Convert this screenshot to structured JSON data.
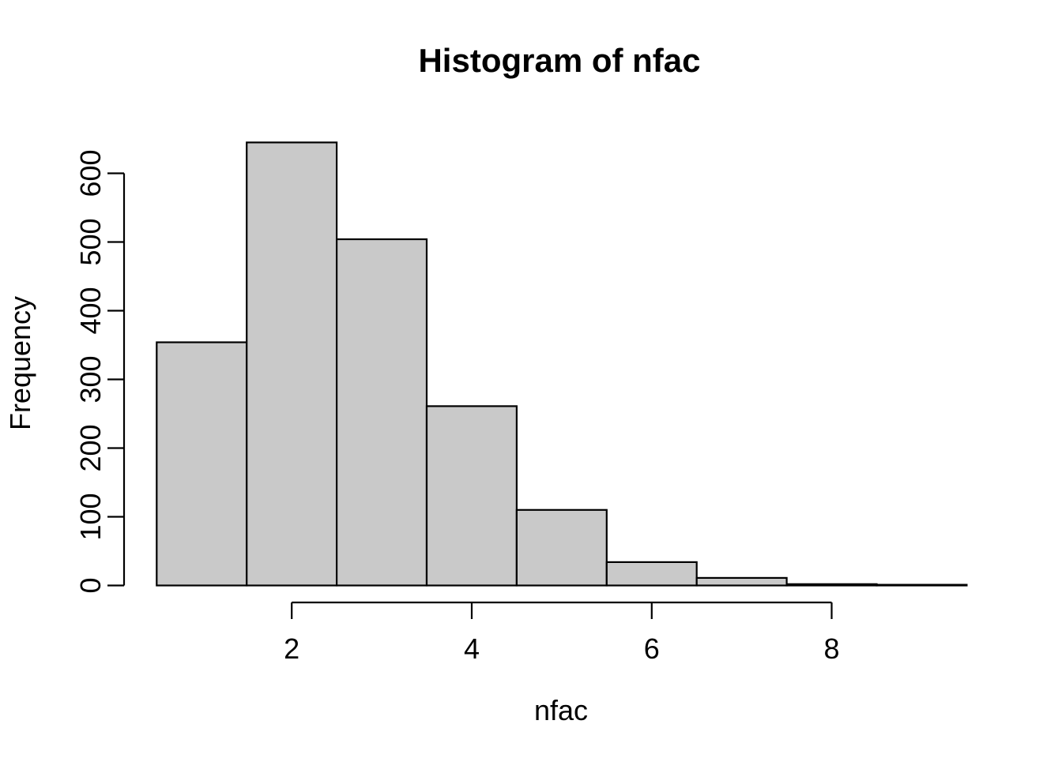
{
  "window": {
    "background_color": "#ffffff"
  },
  "chart_data": {
    "type": "bar",
    "subtype": "histogram",
    "title": "Histogram of nfac",
    "xlabel": "nfac",
    "ylabel": "Frequency",
    "bin_breaks": [
      0.5,
      1.5,
      2.5,
      3.5,
      4.5,
      5.5,
      6.5,
      7.5,
      8.5,
      9.5
    ],
    "bin_centers": [
      1,
      2,
      3,
      4,
      5,
      6,
      7,
      8,
      9
    ],
    "counts": [
      354,
      645,
      504,
      261,
      110,
      34,
      11,
      2,
      1
    ],
    "x_ticks": [
      2,
      4,
      6,
      8
    ],
    "y_ticks": [
      0,
      100,
      200,
      300,
      400,
      500,
      600
    ],
    "xlim": [
      0.5,
      9.5
    ],
    "ylim": [
      0,
      645
    ],
    "grid": "off",
    "legend_position": "none",
    "bar_fill_color": "#c9c9c9",
    "bar_border_color": "#000000",
    "axis_color": "#000000",
    "text_color": "#000000"
  }
}
